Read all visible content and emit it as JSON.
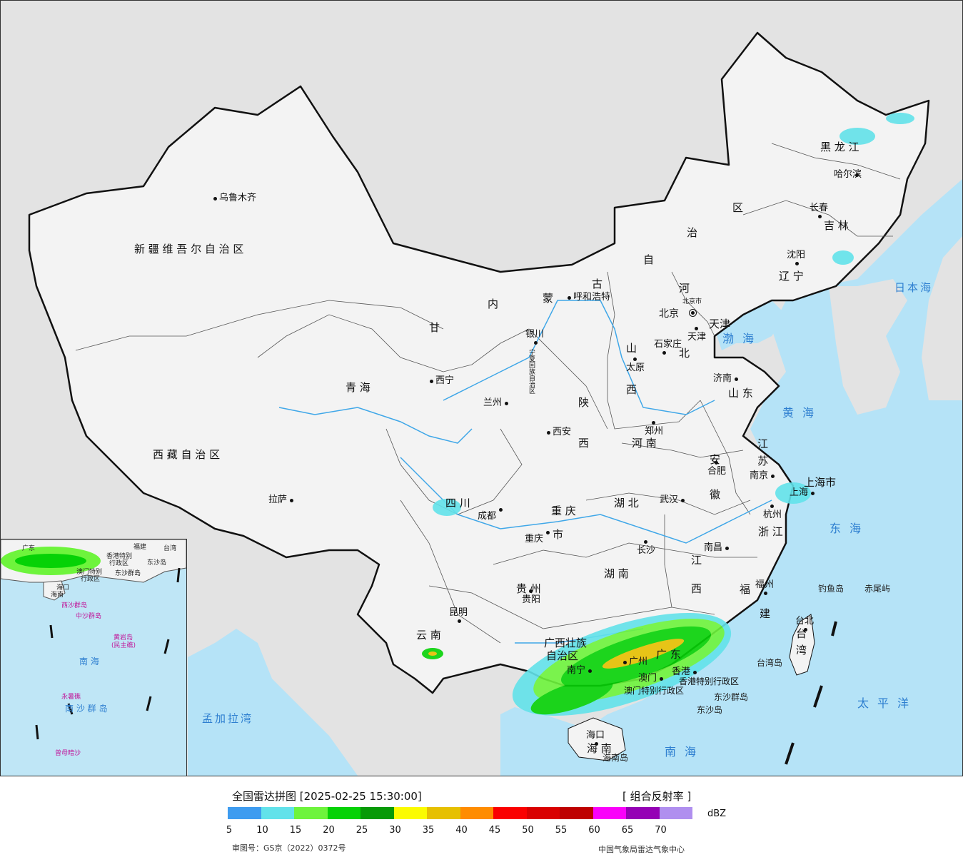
{
  "map": {
    "colors": {
      "sea": "#b5e3f7",
      "land": "#f3f3f3",
      "outside": "#e3e3e3",
      "border": "#111111",
      "river": "#3fa7e8"
    },
    "province_labels": [
      {
        "id": "xinjiang",
        "text": "新 疆 维 吾 尔 自 治 区"
      },
      {
        "id": "xizang",
        "text": "西 藏 自 治 区"
      },
      {
        "id": "qinghai",
        "text": "青      海"
      },
      {
        "id": "gansu",
        "text": "甘"
      },
      {
        "id": "sichuan",
        "text": "四     川"
      },
      {
        "id": "yunnan",
        "text": "云     南"
      },
      {
        "id": "guizhou",
        "text": "贵  州"
      },
      {
        "id": "chongqing1",
        "text": "重 庆"
      },
      {
        "id": "chongqing2",
        "text": "市"
      },
      {
        "id": "shaanxi1",
        "text": "陕"
      },
      {
        "id": "shaanxi2",
        "text": "西"
      },
      {
        "id": "neimenggu1",
        "text": "内"
      },
      {
        "id": "neimenggu2",
        "text": "蒙"
      },
      {
        "id": "neimenggu3",
        "text": "古"
      },
      {
        "id": "neimenggu4",
        "text": "自"
      },
      {
        "id": "neimenggu5",
        "text": "治"
      },
      {
        "id": "neimenggu6",
        "text": "区"
      },
      {
        "id": "heilongjiang",
        "text": "黑  龙  江"
      },
      {
        "id": "jilin",
        "text": "吉  林"
      },
      {
        "id": "liaoning",
        "text": "辽  宁"
      },
      {
        "id": "hebei1",
        "text": "河"
      },
      {
        "id": "hebei2",
        "text": "北"
      },
      {
        "id": "shanxi1",
        "text": "山"
      },
      {
        "id": "shanxi2",
        "text": "西"
      },
      {
        "id": "shandong",
        "text": "山  东"
      },
      {
        "id": "henan",
        "text": "河   南"
      },
      {
        "id": "hubei",
        "text": "湖    北"
      },
      {
        "id": "hunan",
        "text": "湖    南"
      },
      {
        "id": "jiangxi1",
        "text": "江"
      },
      {
        "id": "jiangxi2",
        "text": "西"
      },
      {
        "id": "anhui1",
        "text": "安"
      },
      {
        "id": "anhui2",
        "text": "徽"
      },
      {
        "id": "jiangsu1",
        "text": "江"
      },
      {
        "id": "jiangsu2",
        "text": "苏"
      },
      {
        "id": "zhejiang",
        "text": "浙 江"
      },
      {
        "id": "fujian1",
        "text": "福"
      },
      {
        "id": "fujian2",
        "text": "建"
      },
      {
        "id": "guangdong",
        "text": "广 东"
      },
      {
        "id": "guangxi1",
        "text": "广西壮族"
      },
      {
        "id": "guangxi2",
        "text": "自治区"
      },
      {
        "id": "hainan",
        "text": "海  南"
      },
      {
        "id": "taiwan1",
        "text": "台"
      },
      {
        "id": "taiwan2",
        "text": "湾"
      },
      {
        "id": "shanghai",
        "text": "上海市"
      },
      {
        "id": "tianjin",
        "text": "天津"
      },
      {
        "id": "ningxia",
        "text": "宁夏回族自治区"
      },
      {
        "id": "hk",
        "text": "香港特别行政区"
      },
      {
        "id": "macau",
        "text": "澳门特别行政区"
      }
    ],
    "cities": [
      {
        "id": "urumqi",
        "text": "乌鲁木齐"
      },
      {
        "id": "lhasa",
        "text": "拉萨"
      },
      {
        "id": "xining",
        "text": "西宁"
      },
      {
        "id": "lanzhou",
        "text": "兰州"
      },
      {
        "id": "yinchuan",
        "text": "银川"
      },
      {
        "id": "chengdu",
        "text": "成都"
      },
      {
        "id": "chongqing",
        "text": "重庆"
      },
      {
        "id": "kunming",
        "text": "昆明"
      },
      {
        "id": "guiyang",
        "text": "贵阳"
      },
      {
        "id": "xian",
        "text": "西安"
      },
      {
        "id": "huhehaote",
        "text": "呼和浩特"
      },
      {
        "id": "taiyuan",
        "text": "太原"
      },
      {
        "id": "shijiazhuang",
        "text": "石家庄"
      },
      {
        "id": "beijing",
        "text": "北京"
      },
      {
        "id": "beijingshi",
        "text": "北京市"
      },
      {
        "id": "tianjin_c",
        "text": "天津"
      },
      {
        "id": "zhengzhou",
        "text": "郑州"
      },
      {
        "id": "jinan",
        "text": "济南"
      },
      {
        "id": "shenyang",
        "text": "沈阳"
      },
      {
        "id": "changchun",
        "text": "长春"
      },
      {
        "id": "harbin",
        "text": "哈尔滨"
      },
      {
        "id": "wuhan",
        "text": "武汉"
      },
      {
        "id": "changsha",
        "text": "长沙"
      },
      {
        "id": "nanchang",
        "text": "南昌"
      },
      {
        "id": "hefei",
        "text": "合肥"
      },
      {
        "id": "nanjing",
        "text": "南京"
      },
      {
        "id": "shanghai_c",
        "text": "上海"
      },
      {
        "id": "hangzhou",
        "text": "杭州"
      },
      {
        "id": "fuzhou",
        "text": "福州"
      },
      {
        "id": "taibei",
        "text": "台北"
      },
      {
        "id": "guangzhou",
        "text": "广州"
      },
      {
        "id": "nanning",
        "text": "南宁"
      },
      {
        "id": "haikou",
        "text": "海口"
      },
      {
        "id": "hongkong",
        "text": "香港"
      },
      {
        "id": "macau_c",
        "text": "澳门"
      }
    ],
    "seas": [
      {
        "id": "riben",
        "text": "日本海"
      },
      {
        "id": "bohai",
        "text": "渤海"
      },
      {
        "id": "huanghai",
        "text": "黄海"
      },
      {
        "id": "donghai",
        "text": "东海"
      },
      {
        "id": "taipingyang",
        "text": "太平洋"
      },
      {
        "id": "nanhai",
        "text": "南海"
      },
      {
        "id": "mengjiala",
        "text": "孟加拉湾"
      }
    ],
    "islands": [
      {
        "id": "diaoyu",
        "text": "钓鱼岛"
      },
      {
        "id": "chiwei",
        "text": "赤尾屿"
      },
      {
        "id": "taiwandao",
        "text": "台湾岛"
      },
      {
        "id": "hainandao",
        "text": "海南岛"
      },
      {
        "id": "dongsha_q",
        "text": "东沙群岛"
      },
      {
        "id": "dongsha_d",
        "text": "东沙岛"
      }
    ],
    "inset_labels": [
      {
        "id": "in1",
        "text": "香港特别"
      },
      {
        "id": "in2",
        "text": "行政区"
      },
      {
        "id": "in3",
        "text": "澳门特别"
      },
      {
        "id": "in4",
        "text": "行政区"
      },
      {
        "id": "in5",
        "text": "东沙群岛"
      },
      {
        "id": "in6",
        "text": "海口"
      },
      {
        "id": "in7",
        "text": "海南"
      },
      {
        "id": "in8",
        "text": "西沙群岛"
      },
      {
        "id": "in9",
        "text": "中沙群岛"
      },
      {
        "id": "in10",
        "text": "黄岩岛"
      },
      {
        "id": "in11",
        "text": "(民主礁)"
      },
      {
        "id": "in12",
        "text": "南  海"
      },
      {
        "id": "in13",
        "text": "永暑礁"
      },
      {
        "id": "in14",
        "text": "南 沙 群 岛"
      },
      {
        "id": "in15",
        "text": "曾母暗沙"
      },
      {
        "id": "in16",
        "text": "台湾"
      },
      {
        "id": "in17",
        "text": "广东"
      },
      {
        "id": "in18",
        "text": "福建"
      },
      {
        "id": "in19",
        "text": "东沙岛"
      }
    ]
  },
  "legend": {
    "title": "全国雷达拼图 [2025-02-25 15:30:00]",
    "product": "[ 组合反射率 ]",
    "unit": "dBZ",
    "colors": [
      "#3e9cf0",
      "#62e2ea",
      "#6ef43c",
      "#06d206",
      "#079a07",
      "#fbfb00",
      "#e6c000",
      "#ff8c00",
      "#fa0000",
      "#d90000",
      "#be0000",
      "#fa00fa",
      "#9500b5",
      "#b08fef"
    ],
    "ticks": [
      "5",
      "10",
      "15",
      "20",
      "25",
      "30",
      "35",
      "40",
      "45",
      "50",
      "55",
      "60",
      "65",
      "70"
    ],
    "approval": "审图号：GS京（2022）0372号",
    "producer": "中国气象局雷达气象中心"
  }
}
